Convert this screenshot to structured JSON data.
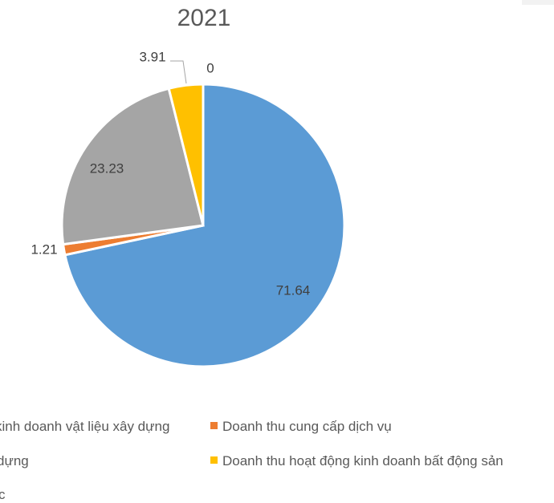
{
  "chart_data": {
    "type": "pie",
    "title": "2021",
    "series": [
      {
        "name": "Doanh thu kinh doanh vật liệu xây dựng",
        "legend_label": "kinh doanh vật liệu xây dựng",
        "value": 71.64,
        "label": "71.64",
        "color": "#5b9bd5"
      },
      {
        "name": "Doanh thu cung cấp dịch vụ",
        "legend_label": "Doanh thu cung cấp dịch vụ",
        "value": 1.21,
        "label": "1.21",
        "color": "#ed7d31"
      },
      {
        "name": "Doanh thu xây dựng",
        "legend_label": "dựng",
        "value": 23.23,
        "label": "23.23",
        "color": "#a5a5a5"
      },
      {
        "name": "Doanh thu hoạt động kinh doanh bất động sản",
        "legend_label": "Doanh thu hoạt động kinh doanh bất động sản",
        "value": 3.91,
        "label": "3.91",
        "color": "#ffc000"
      },
      {
        "name": "Doanh thu khác",
        "legend_label": "c",
        "value": 0,
        "label": "0",
        "color": "#4472c4"
      }
    ],
    "legend_position": "bottom"
  }
}
